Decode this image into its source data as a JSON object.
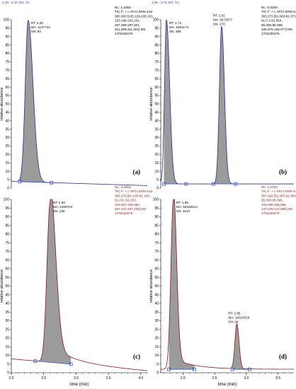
{
  "colors": {
    "peak_fill": "#9b9b9b",
    "trace_top": "#2b2f8a",
    "trace_bottom": "#8b1a1a",
    "baseline": "#1f3fd0",
    "hdr_blue": "#3a3ac8",
    "hdr_red": "#8b1a1a"
  },
  "chart_data": [
    {
      "type": "area",
      "panel_label": "(a)",
      "header_left": "2.00 - 4.10  SM: 7G",
      "header_right_lines": [
        "NL: 1.34E5",
        "TIC F: + c APCI SRM ms2",
        "380.300 [105.139-105.201,",
        "153.199-153.201,",
        "297.299-297.301,",
        "311.299-311.301]  MS",
        "170222b076"
      ],
      "ylabel": "relative abundance",
      "xlabel": "",
      "x_range": [
        2.0,
        4.1
      ],
      "y_range": [
        0,
        100
      ],
      "y_ticks": [
        0,
        5,
        10,
        15,
        20,
        25,
        30,
        35,
        40,
        45,
        50,
        55,
        60,
        65,
        70,
        75,
        80,
        85,
        90,
        95,
        100
      ],
      "x_ticks": [],
      "peaks": [
        {
          "rt": 2.26,
          "height": 100,
          "width_left": 0.045,
          "width_right": 0.075,
          "annotation": [
            "RT: 2.26",
            "MA: 1137744",
            "SN: 93"
          ],
          "fill_from": 2.13,
          "fill_to": 2.62
        }
      ],
      "baseline_start": 4,
      "baseline_end": 1.5,
      "tail": 0
    },
    {
      "type": "area",
      "panel_label": "(b)",
      "header_left": "1.65 - 3.75  SM: 7G",
      "header_right_lines": [
        "NL: 8.81E5",
        "TIC F: + c APCI SRM ms2",
        "383.273 [81.063-81.071,",
        "91.0 2-91.054,",
        "95.086-95.088,",
        "105.075-105.077]  MS",
        "170222b076"
      ],
      "ylabel": "relative abundance",
      "xlabel": "",
      "x_range": [
        1.65,
        3.75
      ],
      "y_range": [
        0,
        100
      ],
      "y_ticks": [
        0,
        5,
        10,
        15,
        20,
        25,
        30,
        35,
        40,
        45,
        50,
        55,
        60,
        65,
        70,
        75,
        80,
        85,
        90,
        95,
        100
      ],
      "x_ticks": [],
      "peaks": [
        {
          "rt": 1.74,
          "height": 100,
          "width_left": 0.03,
          "width_right": 0.05,
          "annotation": [
            "RT: 1.74",
            "MA: 6351174",
            "SN: 286"
          ],
          "fill_from": 1.7,
          "fill_to": 2.05
        },
        {
          "rt": 2.61,
          "height": 96,
          "width_left": 0.035,
          "width_right": 0.045,
          "annotation": [
            "RT: 2.61",
            "MA: 5573577",
            "SN: 270"
          ],
          "fill_from": 2.48,
          "fill_to": 2.83
        }
      ],
      "baseline_start": 2.5,
      "baseline_end": 2.5,
      "tail": 0
    },
    {
      "type": "area",
      "panel_label": "(c)",
      "header_left": "",
      "header_right_lines": [
        "NL: 4.16E5",
        "TIC F: + c APCI SRM ms2",
        "395.270 [81.103-81.105,",
        "91.031-91.033,",
        "105.057-105.059,",
        "297.237-297.239]  MS",
        "170222b076"
      ],
      "ylabel": "relative abundance",
      "xlabel": "time (min)",
      "x_range": [
        2.0,
        4.1
      ],
      "y_range": [
        0,
        100
      ],
      "y_ticks": [
        0,
        5,
        10,
        15,
        20,
        25,
        30,
        35,
        40,
        45,
        50,
        55,
        60,
        65,
        70,
        75,
        80,
        85,
        90,
        95,
        100
      ],
      "x_ticks": [
        "2.0",
        "2.5",
        "3.0",
        "3.5",
        "4.0"
      ],
      "peaks": [
        {
          "rt": 2.6,
          "height": 100,
          "width_left": 0.05,
          "width_right": 0.085,
          "annotation": [
            "RT: 2.60",
            "MA: 3186704",
            "SN: 130"
          ],
          "fill_from": 2.37,
          "fill_to": 2.92
        }
      ],
      "baseline_start": 8,
      "baseline_end": 1,
      "tail": 10
    },
    {
      "type": "area",
      "panel_label": "(d)",
      "header_left": "",
      "header_right_lines": [
        "NL: 1.07E6",
        "TIC F: + c APCI SRM ms2",
        "397.292 [91.067-91.069,",
        "95.093-95.095,",
        "105.086-105.088,",
        "147.078-147.080]  MS",
        "170222b076"
      ],
      "ylabel": "relative abundance",
      "xlabel": "time (min)",
      "x_range": [
        1.65,
        3.75
      ],
      "y_range": [
        0,
        100
      ],
      "y_ticks": [
        0,
        5,
        10,
        15,
        20,
        25,
        30,
        35,
        40,
        45,
        50,
        55,
        60,
        65,
        70,
        75,
        80,
        85,
        90,
        95,
        100
      ],
      "x_ticks": [
        "2.0",
        "2.5",
        "3.0",
        "3.5"
      ],
      "peaks": [
        {
          "rt": 1.85,
          "height": 100,
          "width_left": 0.04,
          "width_right": 0.05,
          "annotation": [
            "RT: 1.85",
            "MA: 52036514",
            "SN: 1510"
          ],
          "fill_from": 1.78,
          "fill_to": 2.18
        },
        {
          "rt": 2.85,
          "height": 28,
          "width_left": 0.03,
          "width_right": 0.035,
          "annotation": [
            "RT: 2.85",
            "MA: 14023019",
            "SN: 94"
          ],
          "fill_from": 2.78,
          "fill_to": 3.05
        }
      ],
      "baseline_start": 2,
      "baseline_end": 2,
      "tail": 6
    }
  ]
}
